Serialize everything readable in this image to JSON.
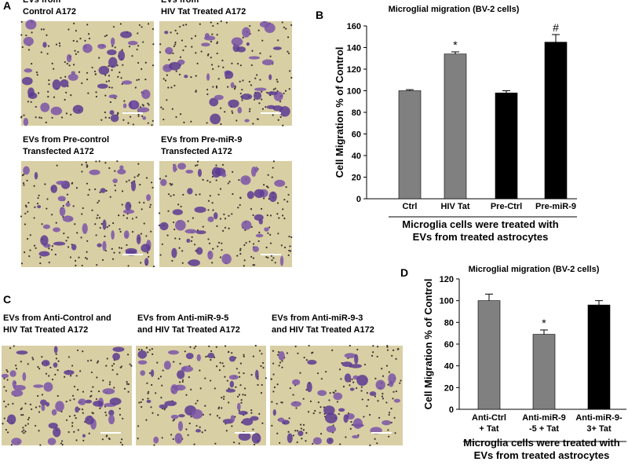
{
  "panel_labels": [
    "A",
    "B",
    "C",
    "D"
  ],
  "images": [
    {
      "caption": [
        "EVs from",
        "Control A172"
      ]
    },
    {
      "caption": [
        "EVs from",
        "HIV  Tat Treated A172"
      ]
    },
    {
      "caption": [
        "EVs from Pre-control",
        "Transfected A172"
      ]
    },
    {
      "caption": [
        "EVs from Pre-miR-9",
        "Transfected A172"
      ]
    },
    {
      "caption": [
        "EVs from Anti-Control and",
        "HIV  Tat Treated A172"
      ]
    },
    {
      "caption": [
        "EVs from Anti-miR-9-5",
        "and HIV  Tat Treated A172"
      ]
    },
    {
      "caption": [
        "EVs from Anti-miR-9-3",
        "and HIV  Tat Treated A172"
      ]
    }
  ],
  "chart_data": [
    {
      "type": "bar",
      "title": "Microglial migration (BV-2 cells)",
      "y_label": "Cell Migration % of Control",
      "x_label": [
        "Microglia cells were treated with",
        "EVs from treated astrocytes"
      ],
      "categories": [
        [
          "Ctrl"
        ],
        [
          "HIV  Tat"
        ],
        [
          "Pre-Ctrl"
        ],
        [
          "Pre-miR-9"
        ]
      ],
      "values": [
        100,
        134,
        98,
        145
      ],
      "errors": [
        1,
        2,
        2,
        7
      ],
      "colors": [
        "#808080",
        "#808080",
        "#000000",
        "#000000"
      ],
      "significance": [
        null,
        "*",
        null,
        "#"
      ],
      "ylim": [
        0,
        160
      ],
      "yticks": [
        0,
        20,
        40,
        60,
        80,
        100,
        120,
        140,
        160
      ]
    },
    {
      "type": "bar",
      "title": "Microglial migration (BV-2 cells)",
      "y_label": "Cell Migration % of Control",
      "x_label": [
        "Microglia cells were treated with",
        "EVs from treated astrocytes"
      ],
      "categories": [
        [
          "Anti-Ctrl",
          "+ Tat"
        ],
        [
          "Anti-miR-9",
          "-5 + Tat"
        ],
        [
          "Anti-miR-9-",
          "3+ Tat"
        ]
      ],
      "values": [
        100,
        69,
        96
      ],
      "errors": [
        6,
        4,
        4
      ],
      "colors": [
        "#808080",
        "#808080",
        "#000000"
      ],
      "significance": [
        null,
        "*",
        null
      ],
      "ylim": [
        0,
        120
      ],
      "yticks": [
        0,
        20,
        40,
        60,
        80,
        100,
        120
      ]
    }
  ]
}
